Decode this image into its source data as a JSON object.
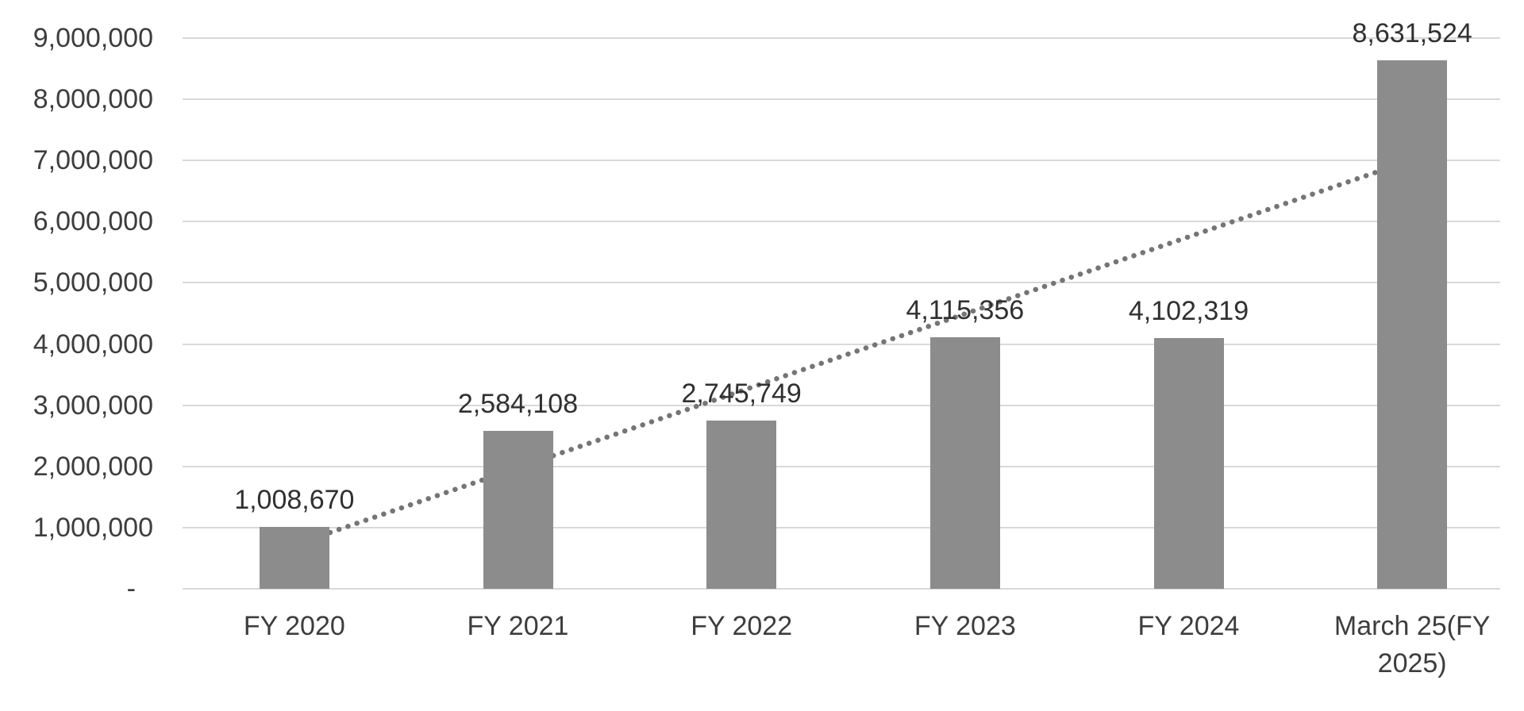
{
  "chart_data": {
    "type": "bar",
    "title": "",
    "xlabel": "",
    "ylabel": "",
    "categories": [
      "FY 2020",
      "FY 2021",
      "FY 2022",
      "FY 2023",
      "FY 2024",
      "March 25(FY 2025)"
    ],
    "values": [
      1008670,
      2584108,
      2745749,
      4115356,
      4102319,
      8631524
    ],
    "value_labels": [
      "1,008,670",
      "2,584,108",
      "2,745,749",
      "4,115,356",
      "4,102,319",
      "8,631,524"
    ],
    "ylim": [
      0,
      9000000
    ],
    "ytick_step": 1000000,
    "ytick_labels": [
      "-",
      "1,000,000",
      "2,000,000",
      "3,000,000",
      "4,000,000",
      "5,000,000",
      "6,000,000",
      "7,000,000",
      "8,000,000",
      "9,000,000"
    ],
    "grid": "horizontal",
    "legend": false,
    "trendline": {
      "type": "linear",
      "style": "dotted"
    },
    "colors": {
      "background": "#ffffff",
      "bar": "#8c8c8c",
      "trendline": "#757575",
      "gridline": "#d9d9d9",
      "axis_text": "#3d3d3d",
      "value_label_text": "#303030"
    }
  }
}
